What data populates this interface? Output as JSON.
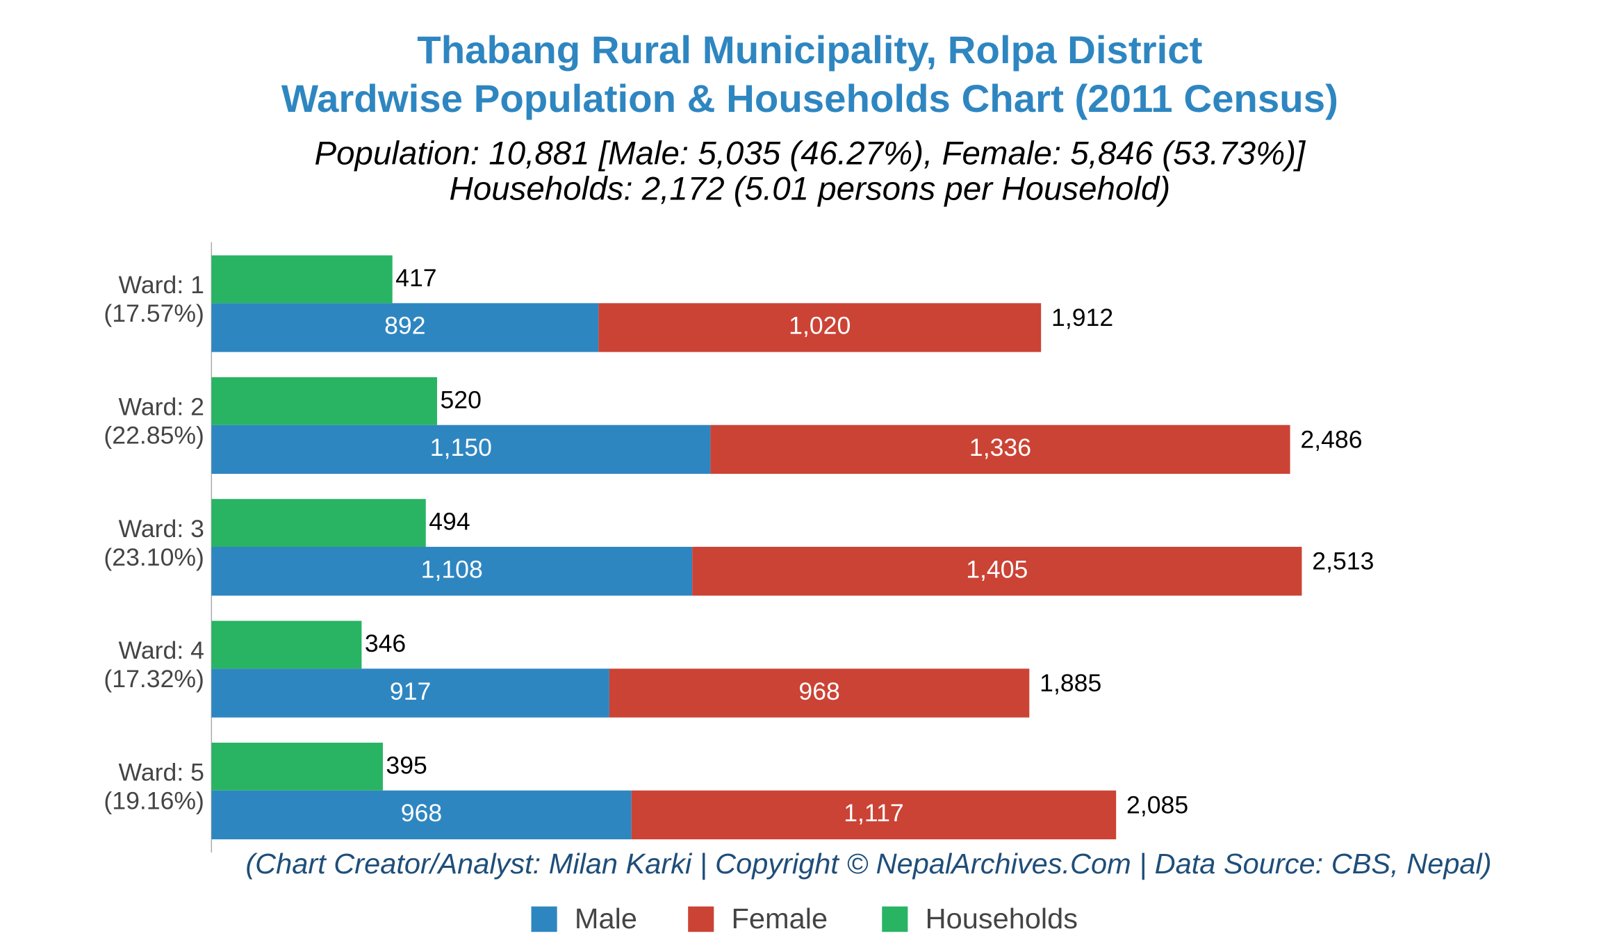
{
  "chart_data": {
    "type": "bar",
    "orientation": "horizontal",
    "title": "Thabang Rural Municipality, Rolpa District",
    "title_line2": "Wardwise Population & Households Chart (2011 Census)",
    "subtitle": "Population: 10,881 [Male: 5,035 (46.27%), Female: 5,846 (53.73%)]",
    "subtitle_line2": "Households: 2,172 (5.01 persons per Household)",
    "footer": "(Chart Creator/Analyst: Milan Karki | Copyright © NepalArchives.Com | Data Source: CBS, Nepal)",
    "categories": [
      "Ward: 1",
      "Ward: 2",
      "Ward: 3",
      "Ward: 4",
      "Ward: 5"
    ],
    "category_shares": [
      "(17.57%)",
      "(22.85%)",
      "(23.10%)",
      "(17.32%)",
      "(19.16%)"
    ],
    "series": [
      {
        "name": "Male",
        "color": "#2e86c1",
        "stack": "population",
        "values": [
          892,
          1150,
          1108,
          917,
          968
        ],
        "value_labels": [
          "892",
          "1,150",
          "1,108",
          "917",
          "968"
        ]
      },
      {
        "name": "Female",
        "color": "#cb4335",
        "stack": "population",
        "values": [
          1020,
          1336,
          1405,
          968,
          1117
        ],
        "value_labels": [
          "1,020",
          "1,336",
          "1,405",
          "968",
          "1,117"
        ]
      },
      {
        "name": "Households",
        "color": "#28b463",
        "stack": "households",
        "values": [
          417,
          520,
          494,
          346,
          395
        ]
      }
    ],
    "totals": {
      "values": [
        1912,
        2486,
        2513,
        1885,
        2085
      ],
      "value_labels": [
        "1,912",
        "2,486",
        "2,513",
        "1,885",
        "2,085"
      ]
    },
    "xlim": [
      0,
      2600
    ],
    "legend": "bottom"
  }
}
